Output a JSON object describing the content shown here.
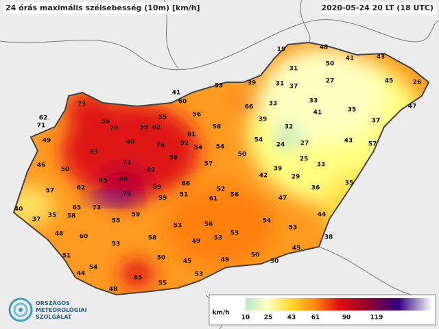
{
  "header": {
    "title": "24 órás maximális szélsebesség (10m) [km/h]",
    "valid_time": "2020-05-24 20 LT (18 UTC)"
  },
  "stations": [
    19,
    48,
    43,
    41,
    50,
    31,
    45,
    26,
    39,
    31,
    37,
    27,
    53,
    41,
    60,
    33,
    33,
    66,
    47,
    73,
    35,
    41,
    55,
    56,
    39,
    37,
    62,
    71,
    56,
    70,
    53,
    62,
    58,
    32,
    61,
    54,
    43,
    49,
    60,
    76,
    92,
    54,
    54,
    24,
    27,
    57,
    63,
    50,
    25,
    71,
    58,
    57,
    33,
    46,
    50,
    62,
    39,
    42,
    29,
    95,
    69,
    66,
    59,
    52,
    36,
    35,
    57,
    62,
    75,
    51,
    61,
    56,
    59,
    47,
    40,
    65,
    73,
    58,
    59,
    35,
    37,
    44,
    55,
    56,
    54,
    53,
    53,
    48,
    60,
    53,
    58,
    53,
    49,
    38,
    53,
    45,
    51,
    50,
    45,
    49,
    50,
    50,
    54,
    44,
    65,
    53,
    55,
    48
  ],
  "legend": {
    "unit": "km/h",
    "ticks": [
      10,
      25,
      43,
      61,
      90,
      119
    ]
  },
  "logo": {
    "lines": [
      "ORSZÁGOS",
      "METEOROLÓGIAI",
      "SZOLGÁLAT"
    ]
  }
}
